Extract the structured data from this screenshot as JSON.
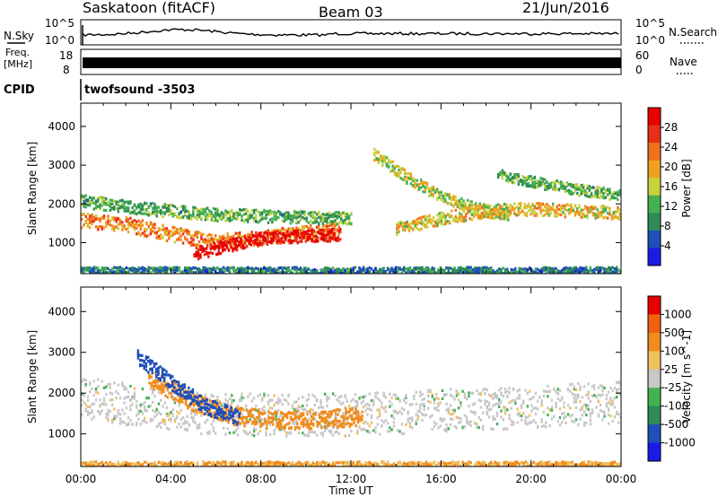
{
  "header": {
    "station": "Saskatoon (fitACF)",
    "beam": "Beam 03",
    "date": "21/Jun/2016"
  },
  "strip": {
    "nsky_label": "N.Sky",
    "nsky_ticks": [
      "10^5",
      "10^0"
    ],
    "nsearch_label": "N.Search",
    "nsearch_ticks": [
      "10^5",
      "10^0"
    ],
    "freq_label_1": "Freq.",
    "freq_label_2": "[MHz]",
    "freq_ticks": [
      "18",
      "8"
    ],
    "nave_label": "Nave",
    "nave_ticks": [
      "60",
      "0"
    ],
    "cpid_label": "CPID",
    "cpid_value": "twofsound -3503"
  },
  "colors": {
    "power_scale": [
      "#1a1ae6",
      "#1f4fb8",
      "#2e8a57",
      "#45b050",
      "#c8d23c",
      "#f0a020",
      "#f07020",
      "#e83018",
      "#e80000"
    ],
    "velocity_scale": [
      "#1a1ae6",
      "#1f4fb8",
      "#2e8a57",
      "#45b050",
      "#c8c8c8",
      "#f0c060",
      "#f08c1e",
      "#f06010",
      "#e80000"
    ]
  },
  "chart_data": [
    {
      "type": "heatmap",
      "name": "Power",
      "xlabel": "",
      "ylabel": "Slant Range [km]",
      "x_ticks": [
        "00:00",
        "04:00",
        "08:00",
        "12:00",
        "16:00",
        "20:00",
        "00:00"
      ],
      "y_ticks": [
        "1000",
        "2000",
        "3000",
        "4000"
      ],
      "ylim": [
        200,
        4600
      ],
      "colorbar_label": "Power [dB]",
      "colorbar_ticks": [
        "4",
        "8",
        "12",
        "16",
        "20",
        "24",
        "28"
      ],
      "colorbar_range": [
        0,
        32
      ],
      "bands": [
        {
          "hours": [
            0,
            2,
            4,
            6,
            8,
            10,
            11.5
          ],
          "range_km": [
            1600,
            1500,
            1250,
            1050,
            1150,
            1300,
            1350
          ],
          "width_km": 300,
          "power_db": 22
        },
        {
          "hours": [
            5,
            6.5,
            8,
            10,
            11.5
          ],
          "range_km": [
            750,
            950,
            1150,
            1200,
            1250
          ],
          "width_km": 250,
          "power_db": 30
        },
        {
          "hours": [
            0,
            3,
            6,
            9,
            12
          ],
          "range_km": [
            2100,
            1900,
            1750,
            1700,
            1650
          ],
          "width_km": 250,
          "power_db": 12
        },
        {
          "hours": [
            13,
            14.5,
            16,
            17.5,
            19
          ],
          "range_km": [
            3300,
            2700,
            2200,
            1900,
            1750
          ],
          "width_km": 250,
          "power_db": 16
        },
        {
          "hours": [
            14,
            16,
            18,
            20,
            22,
            24
          ],
          "range_km": [
            1400,
            1650,
            1850,
            1900,
            1850,
            1800
          ],
          "width_km": 250,
          "power_db": 18
        },
        {
          "hours": [
            18.5,
            20,
            22,
            24
          ],
          "range_km": [
            2800,
            2600,
            2400,
            2250
          ],
          "width_km": 220,
          "power_db": 12
        },
        {
          "hours": [
            0,
            6,
            12,
            18,
            24
          ],
          "range_km": [
            300,
            300,
            300,
            300,
            300
          ],
          "width_km": 150,
          "power_db": 8
        }
      ]
    },
    {
      "type": "heatmap",
      "name": "Velocity",
      "xlabel": "Time UT",
      "ylabel": "Slant Range [km]",
      "x_ticks": [
        "00:00",
        "04:00",
        "08:00",
        "12:00",
        "16:00",
        "20:00",
        "00:00"
      ],
      "y_ticks": [
        "1000",
        "2000",
        "3000",
        "4000"
      ],
      "ylim": [
        200,
        4600
      ],
      "colorbar_label": "Velocity [m s^-1]",
      "colorbar_ticks": [
        "1000",
        "500",
        "100",
        "25",
        "-25",
        "-100",
        "-500",
        "-1000"
      ],
      "bands": [
        {
          "hours": [
            0,
            3,
            6,
            9,
            12,
            24
          ],
          "range_km": [
            1900,
            1700,
            1500,
            1500,
            1500,
            1800
          ],
          "width_km": 800,
          "velocity": 0
        },
        {
          "hours": [
            3,
            5,
            7,
            9,
            11,
            12.5
          ],
          "range_km": [
            2400,
            1800,
            1450,
            1350,
            1400,
            1450
          ],
          "width_km": 350,
          "velocity": -300
        },
        {
          "hours": [
            2.5,
            4,
            5.5,
            7
          ],
          "range_km": [
            2900,
            2300,
            1700,
            1450
          ],
          "width_km": 300,
          "velocity": 150
        },
        {
          "hours": [
            0,
            6,
            12,
            18,
            24
          ],
          "range_km": [
            250,
            250,
            250,
            250,
            250
          ],
          "width_km": 150,
          "velocity": -100
        }
      ]
    }
  ]
}
